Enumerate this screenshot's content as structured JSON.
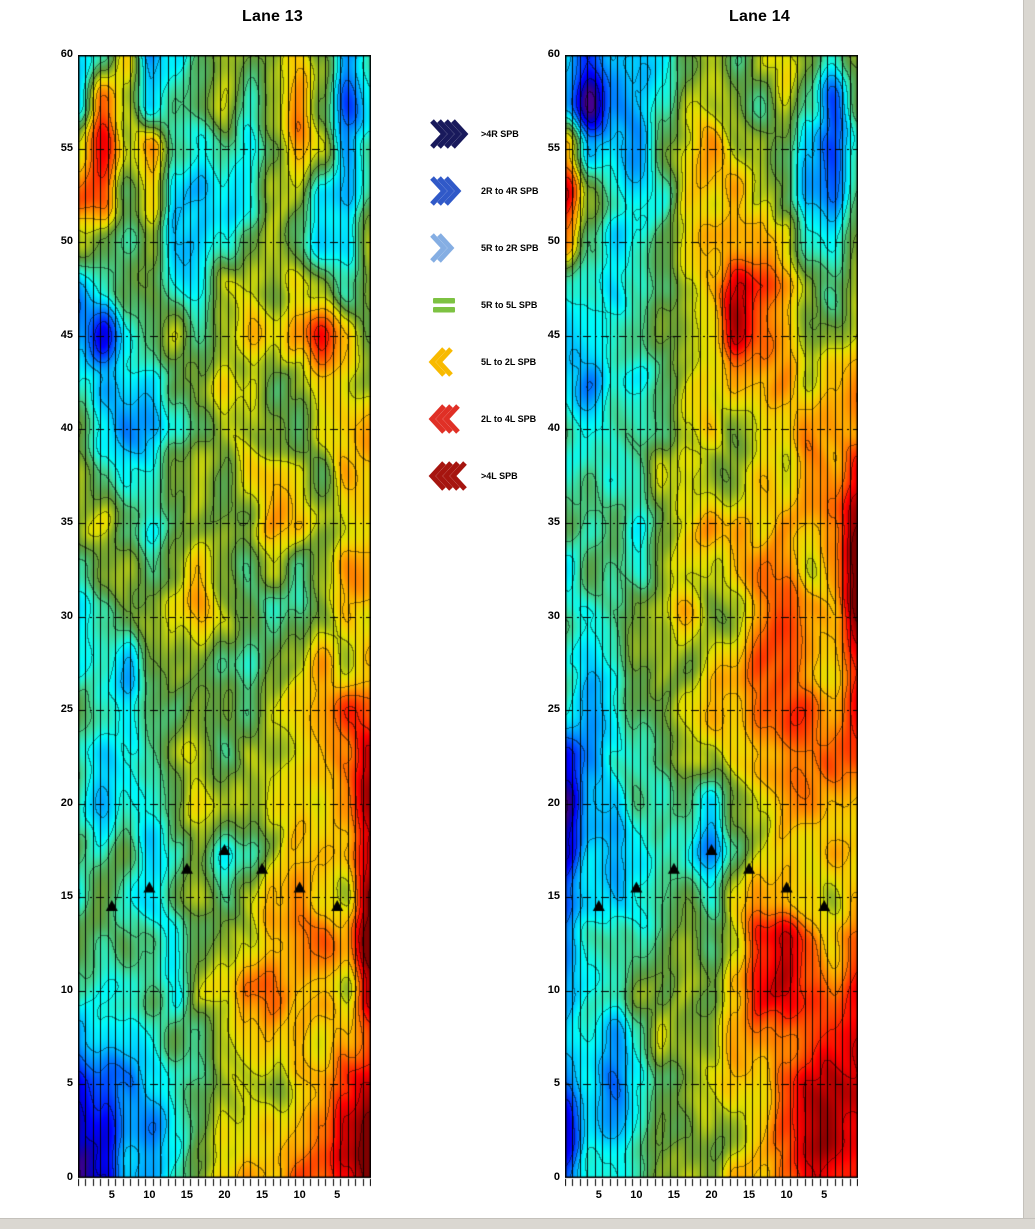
{
  "figure": {
    "background": "#ffffff"
  },
  "chart_data": [
    {
      "type": "heatmap",
      "title": "Lane 13",
      "ylim": [
        0,
        60
      ],
      "grid_y_step": 5,
      "y_ticks": [
        0,
        5,
        10,
        15,
        20,
        25,
        30,
        35,
        40,
        45,
        50,
        55,
        60
      ],
      "x_total_boards": 39,
      "x_ticks": [
        {
          "board": 5,
          "label": "5"
        },
        {
          "board": 10,
          "label": "10"
        },
        {
          "board": 15,
          "label": "15"
        },
        {
          "board": 20,
          "label": "20"
        },
        {
          "board": 25,
          "label": "15"
        },
        {
          "board": 30,
          "label": "10"
        },
        {
          "board": 35,
          "label": "5"
        }
      ],
      "values_layout": "25 rows spanning y=60 (first row, top) to y=0 (last row, bottom); 13 columns spanning board 1 (left) to board 39 (right); values are estimated cross-slope, positive = R side (blue), negative = L side (red), units per legend (SPB)",
      "values": [
        [
          1.5,
          0,
          -2,
          2.5,
          1.5,
          0,
          -1,
          0,
          -1,
          -2,
          0,
          2.5,
          1
        ],
        [
          1,
          -3.5,
          -1,
          2,
          1,
          0,
          -1,
          1,
          -1,
          -2,
          0,
          3,
          1
        ],
        [
          -2,
          -4,
          -1,
          -2,
          1,
          1,
          0,
          1,
          0,
          -2,
          -1,
          2,
          0
        ],
        [
          -3,
          -3,
          0,
          -2,
          2,
          2,
          1,
          1,
          -1,
          -1,
          1,
          2,
          0
        ],
        [
          -1,
          0,
          1,
          -1,
          2,
          2,
          1,
          0,
          -1,
          0,
          1,
          1,
          -1
        ],
        [
          2,
          1,
          0,
          0,
          1,
          1,
          -1,
          -1,
          0,
          -1,
          -1,
          0,
          -1
        ],
        [
          2,
          4,
          1,
          0,
          -1,
          0,
          -1,
          -2,
          -1,
          -2,
          -4,
          -2,
          -1
        ],
        [
          1,
          2,
          1,
          1,
          0,
          -1,
          -2,
          -1,
          0,
          -1,
          -2,
          -1,
          -1
        ],
        [
          0,
          1,
          2,
          2,
          1,
          0,
          -1,
          -1,
          -1,
          0,
          -1,
          -1,
          -2
        ],
        [
          -1,
          0,
          1,
          1,
          0,
          -1,
          0,
          -2,
          -2,
          -1,
          0,
          -2,
          -2
        ],
        [
          -1,
          -1,
          0,
          1,
          0,
          -1,
          -1,
          -1,
          -2,
          -2,
          -1,
          -1,
          -2
        ],
        [
          1,
          0,
          -1,
          0,
          -1,
          -2,
          -1,
          0,
          -1,
          0,
          -1,
          -2,
          -2
        ],
        [
          2,
          1,
          0,
          -1,
          -2,
          -2,
          -1,
          0,
          1,
          0,
          -1,
          -2,
          -1
        ],
        [
          1,
          1,
          2,
          0,
          -1,
          -1,
          0,
          1,
          0,
          -1,
          -2,
          -1,
          -2
        ],
        [
          0,
          1,
          1,
          0,
          0,
          -1,
          -1,
          0,
          -1,
          -2,
          -2,
          -3,
          -3
        ],
        [
          1,
          2,
          1,
          0,
          -1,
          -1,
          0,
          -1,
          -1,
          -2,
          -2,
          -2,
          -4
        ],
        [
          1,
          2,
          1,
          1,
          0,
          -1,
          -1,
          -1,
          -2,
          -2,
          -1,
          -2,
          -4
        ],
        [
          0,
          1,
          0,
          2,
          1,
          0,
          1,
          0,
          -1,
          -2,
          -2,
          -2,
          -4
        ],
        [
          1,
          0,
          1,
          1,
          0,
          -1,
          0,
          -1,
          -2,
          -3,
          -2,
          -1,
          -5
        ],
        [
          0,
          1,
          0,
          0,
          1,
          0,
          -1,
          -1,
          -2,
          -3,
          -3,
          -2,
          -5
        ],
        [
          1,
          1,
          1,
          0,
          1,
          -1,
          -1,
          -2,
          -3,
          -2,
          -2,
          -1,
          -4
        ],
        [
          2,
          1,
          1,
          1,
          0,
          0,
          -1,
          -1,
          -2,
          -2,
          -1,
          -2,
          -3
        ],
        [
          4,
          3,
          2,
          1,
          1,
          0,
          -1,
          -1,
          -1,
          -2,
          -2,
          -3,
          -4
        ],
        [
          5,
          4,
          2,
          2,
          1,
          0,
          -1,
          -1,
          -2,
          -2,
          -3,
          -4,
          -5
        ],
        [
          5,
          4,
          2,
          2,
          1,
          0,
          -1,
          -2,
          -2,
          -3,
          -3,
          -4,
          -5
        ]
      ],
      "markers": [
        {
          "board": 5,
          "y": 14.5
        },
        {
          "board": 10,
          "y": 15.5
        },
        {
          "board": 15,
          "y": 16.5
        },
        {
          "board": 20,
          "y": 17.5
        },
        {
          "board": 25,
          "y": 16.5
        },
        {
          "board": 30,
          "y": 15.5
        },
        {
          "board": 35,
          "y": 14.5
        }
      ]
    },
    {
      "type": "heatmap",
      "title": "Lane 14",
      "ylim": [
        0,
        60
      ],
      "grid_y_step": 5,
      "y_ticks": [
        0,
        5,
        10,
        15,
        20,
        25,
        30,
        35,
        40,
        45,
        50,
        55,
        60
      ],
      "x_total_boards": 39,
      "x_ticks": [
        {
          "board": 5,
          "label": "5"
        },
        {
          "board": 10,
          "label": "10"
        },
        {
          "board": 15,
          "label": "15"
        },
        {
          "board": 20,
          "label": "20"
        },
        {
          "board": 25,
          "label": "15"
        },
        {
          "board": 30,
          "label": "10"
        },
        {
          "board": 35,
          "label": "5"
        }
      ],
      "values_layout": "25 rows spanning y=60 (first row, top) to y=0 (last row, bottom); 13 columns spanning board 1 (left) to board 39 (right); values are estimated cross-slope, positive = R side (blue), negative = L side (red), units per legend (SPB)",
      "values": [
        [
          1,
          3,
          2,
          2,
          1,
          0,
          -1,
          0,
          -1,
          -1,
          0,
          1,
          0
        ],
        [
          2,
          4.5,
          2,
          2,
          1,
          -1,
          -1,
          -1,
          0,
          -1,
          1,
          3,
          0
        ],
        [
          -2,
          2,
          1,
          2,
          0,
          -1,
          -2,
          -1,
          -1,
          0,
          2,
          3.5,
          1
        ],
        [
          -4.5,
          -1,
          1,
          1,
          1,
          -1,
          -1,
          -2,
          -1,
          0,
          2,
          3,
          1
        ],
        [
          -3,
          0,
          2,
          1,
          0,
          -1,
          -2,
          -2,
          -2,
          -1,
          1,
          1,
          0
        ],
        [
          1,
          1,
          2,
          1,
          0,
          -1,
          -2,
          -4,
          -3,
          -2,
          -1,
          0,
          -1
        ],
        [
          2,
          1,
          1,
          0,
          -1,
          -1,
          -1,
          -4,
          -3,
          -2,
          -1,
          -1,
          -1
        ],
        [
          1,
          2,
          1,
          1,
          0,
          -1,
          -1,
          -2,
          -2,
          -2,
          -1,
          -2,
          -2
        ],
        [
          0,
          1,
          1,
          1,
          0,
          -1,
          -2,
          -1,
          -1,
          -1,
          -2,
          -2,
          -2
        ],
        [
          1,
          0,
          1,
          1,
          -1,
          -1,
          -1,
          -1,
          -2,
          -1,
          -2,
          -2,
          -4
        ],
        [
          0,
          1,
          0,
          1,
          0,
          -1,
          -2,
          -2,
          -1,
          -2,
          -2,
          -2,
          -5
        ],
        [
          1,
          0,
          1,
          1,
          -1,
          -1,
          -1,
          -2,
          -2,
          -2,
          -1,
          -2,
          -5
        ],
        [
          0,
          1,
          1,
          0,
          -1,
          -2,
          -1,
          -1,
          -2,
          -3,
          -2,
          -2,
          -5
        ],
        [
          1,
          2,
          1,
          0,
          -1,
          -1,
          -2,
          -2,
          -3,
          -3,
          -2,
          -2,
          -4
        ],
        [
          1,
          2,
          1,
          0,
          -1,
          -2,
          -2,
          -2,
          -3,
          -3,
          -3,
          -2,
          -4
        ],
        [
          3,
          2,
          1,
          1,
          0,
          -1,
          -1,
          -2,
          -2,
          -2,
          -2,
          -3,
          -3
        ],
        [
          4.5,
          2,
          2,
          1,
          1,
          0,
          1,
          -1,
          -1,
          -2,
          -2,
          -2,
          -2
        ],
        [
          4.5,
          2,
          2,
          2,
          1,
          1,
          2,
          0,
          -1,
          -2,
          -1,
          -2,
          -2
        ],
        [
          3,
          2,
          2,
          1,
          1,
          0,
          1,
          -1,
          -2,
          -2,
          -2,
          -1,
          -2
        ],
        [
          2,
          1,
          1,
          1,
          0,
          -1,
          0,
          -1,
          -3,
          -4,
          -3,
          -2,
          -3
        ],
        [
          2,
          1,
          1,
          0,
          0,
          -1,
          -1,
          -2,
          -4,
          -4.5,
          -3,
          -3,
          -4
        ],
        [
          2,
          1,
          2,
          1,
          -1,
          -1,
          -1,
          -2,
          -3,
          -3,
          -3,
          -4,
          -4.5
        ],
        [
          3,
          1,
          2,
          1,
          0,
          -1,
          -1,
          -2,
          -2,
          -3,
          -4,
          -4.5,
          -4.5
        ],
        [
          4,
          1,
          2,
          1,
          0,
          0,
          -1,
          -1,
          -2,
          -3,
          -4,
          -4.5,
          -4
        ],
        [
          3,
          1,
          1,
          1,
          0,
          -1,
          -1,
          -2,
          -2,
          -3,
          -4,
          -4,
          -4
        ]
      ],
      "markers": [
        {
          "board": 5,
          "y": 14.5
        },
        {
          "board": 10,
          "y": 15.5
        },
        {
          "board": 15,
          "y": 16.5
        },
        {
          "board": 20,
          "y": 17.5
        },
        {
          "board": 25,
          "y": 16.5
        },
        {
          "board": 30,
          "y": 15.5
        },
        {
          "board": 35,
          "y": 14.5
        }
      ]
    }
  ],
  "legend": {
    "items": [
      {
        "label": ">4R SPB",
        "icon": "chevrons-right",
        "chevrons": 4,
        "color": "#191a5c"
      },
      {
        "label": "2R to 4R SPB",
        "icon": "chevrons-right",
        "chevrons": 3,
        "color": "#3059c8"
      },
      {
        "label": "5R to 2R SPB",
        "icon": "chevrons-right",
        "chevrons": 2,
        "color": "#85aee3"
      },
      {
        "label": "5R to 5L SPB",
        "icon": "bars",
        "chevrons": 0,
        "color": "#7dc242"
      },
      {
        "label": "5L to 2L SPB",
        "icon": "chevrons-left",
        "chevrons": 2,
        "color": "#f8ba00"
      },
      {
        "label": "2L to 4L SPB",
        "icon": "chevrons-left",
        "chevrons": 3,
        "color": "#e03026"
      },
      {
        "label": ">4L SPB",
        "icon": "chevrons-left",
        "chevrons": 4,
        "color": "#a6150f"
      }
    ]
  }
}
